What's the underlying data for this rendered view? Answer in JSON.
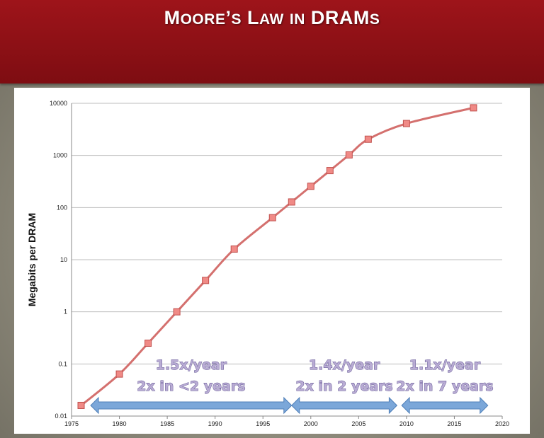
{
  "slide": {
    "title": "Moore’s Law in DRAMs"
  },
  "chart_data": {
    "type": "line",
    "title": "Moore’s Law in DRAMs",
    "xlabel": "",
    "ylabel": "Megabits per DRAM",
    "xlim": [
      1975,
      2020
    ],
    "ylim": [
      0.01,
      10000
    ],
    "y_scale": "log",
    "x_ticks": [
      "1975",
      "1980",
      "1985",
      "1990",
      "1995",
      "2000",
      "2005",
      "2010",
      "2015",
      "2020"
    ],
    "y_ticks": [
      "0.01",
      "0.1",
      "1",
      "10",
      "100",
      "1000",
      "10000"
    ],
    "grid": "horizontal",
    "series": [
      {
        "color": "#d4706e",
        "x": [
          1976,
          1980,
          1983,
          1986,
          1989,
          1992,
          1996,
          1998,
          2000,
          2002,
          2004,
          2006,
          2010,
          2017
        ],
        "y": [
          0.016,
          0.064,
          0.25,
          1,
          4,
          16,
          64,
          128,
          256,
          512,
          1024,
          2048,
          4096,
          8192
        ]
      }
    ],
    "annotations": [
      {
        "line1": "1.5x/year",
        "line2": "2x in <2 years",
        "x_from": 1977,
        "x_to": 1998
      },
      {
        "line1": "1.4x/year",
        "line2": "2x in 2 years",
        "x_from": 1998,
        "x_to": 2009
      },
      {
        "line1": "1.1x/year",
        "line2": "2x in 7 years",
        "x_from": 2009.5,
        "x_to": 2018.5
      }
    ],
    "arrow_color": "#7ba7d9"
  }
}
